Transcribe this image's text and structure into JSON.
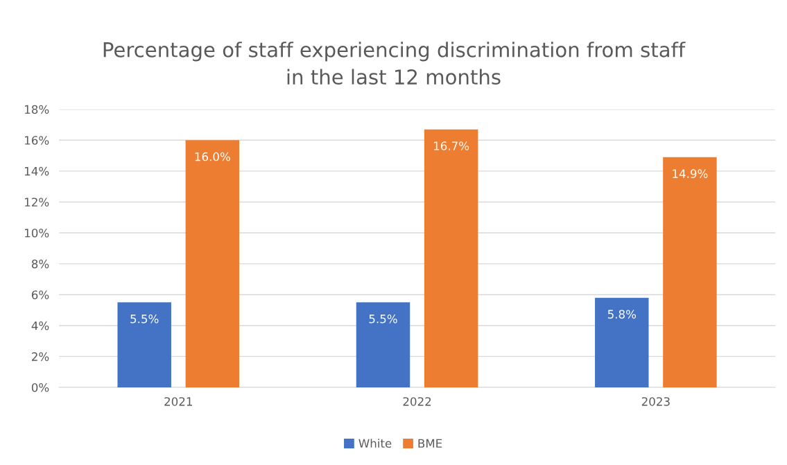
{
  "chart_data": {
    "type": "bar",
    "title": "Percentage of staff experiencing discrimination from staff\nin the last 12 months",
    "categories": [
      "2021",
      "2022",
      "2023"
    ],
    "series": [
      {
        "name": "White",
        "color": "#4472c4",
        "values": [
          5.5,
          5.5,
          5.8
        ],
        "value_labels": [
          "5.5%",
          "5.5%",
          "5.8%"
        ]
      },
      {
        "name": "BME",
        "color": "#ed7d31",
        "values": [
          16.0,
          16.7,
          14.9
        ],
        "value_labels": [
          "16.0%",
          "16.7%",
          "14.9%"
        ]
      }
    ],
    "ylim": [
      0,
      18
    ],
    "yticks": [
      {
        "value": 0,
        "label": "0%"
      },
      {
        "value": 2,
        "label": "2%"
      },
      {
        "value": 4,
        "label": "4%"
      },
      {
        "value": 6,
        "label": "6%"
      },
      {
        "value": 8,
        "label": "8%"
      },
      {
        "value": 10,
        "label": "10%"
      },
      {
        "value": 12,
        "label": "12%"
      },
      {
        "value": 14,
        "label": "14%"
      },
      {
        "value": 16,
        "label": "16%"
      },
      {
        "value": 18,
        "label": "18%"
      }
    ],
    "grid": "y",
    "legend": "bottom"
  }
}
